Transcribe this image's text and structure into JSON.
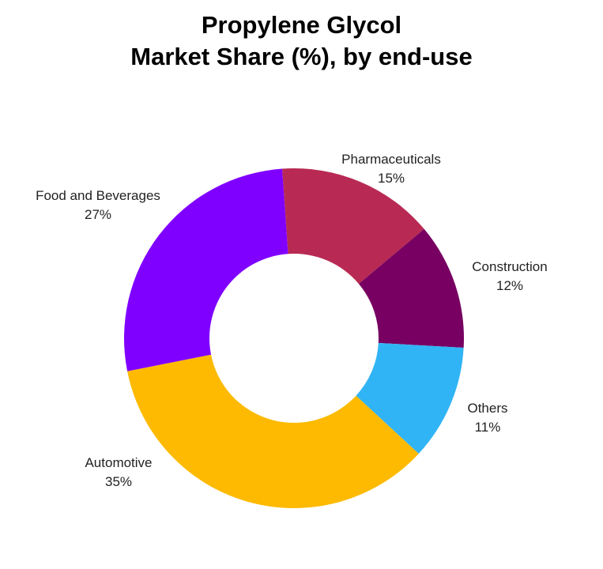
{
  "chart_data": {
    "type": "pie",
    "donut": true,
    "title_lines": [
      "Propylene Glycol",
      "Market Share (%), by end-use"
    ],
    "slices": [
      {
        "label": "Pharmaceuticals",
        "value": 15,
        "value_label": "15%",
        "color": "#B82A54"
      },
      {
        "label": "Construction",
        "value": 12,
        "value_label": "12%",
        "color": "#780062"
      },
      {
        "label": "Others",
        "value": 11,
        "value_label": "11%",
        "color": "#31B4F5"
      },
      {
        "label": "Automotive",
        "value": 35,
        "value_label": "35%",
        "color": "#FDBA00"
      },
      {
        "label": "Food and Beverages",
        "value": 27,
        "value_label": "27%",
        "color": "#8000FF"
      }
    ],
    "legend": "none"
  }
}
